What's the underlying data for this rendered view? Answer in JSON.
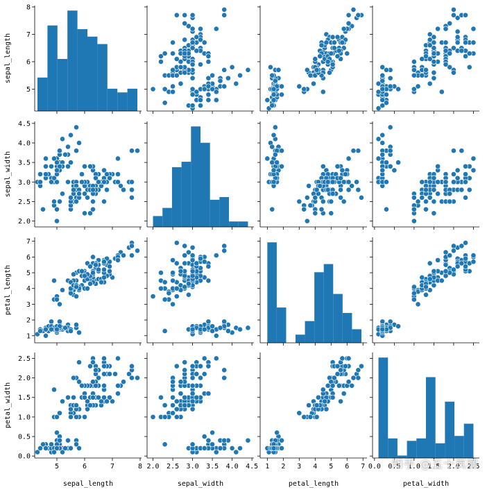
{
  "chart_data": {
    "type": "scatter",
    "variables": [
      "sepal_length",
      "sepal_width",
      "petal_length",
      "petal_width"
    ],
    "ranges": {
      "sepal_length": [
        4.2,
        8.05
      ],
      "sepal_width": [
        1.85,
        4.55
      ],
      "petal_length": [
        0.55,
        7.25
      ],
      "petal_width": [
        -0.05,
        2.65
      ]
    },
    "ticks": {
      "sepal_length": [
        5,
        6,
        7,
        8
      ],
      "sepal_width": [
        2.0,
        2.5,
        3.0,
        3.5,
        4.0,
        4.5
      ],
      "petal_length": [
        1,
        2,
        3,
        4,
        5,
        6,
        7
      ],
      "petal_width": [
        0.0,
        0.5,
        1.0,
        1.5,
        2.0,
        2.5
      ]
    },
    "tick_labels": {
      "sepal_length": [
        "5",
        "6",
        "7",
        "8"
      ],
      "sepal_width": [
        "2.0",
        "2.5",
        "3.0",
        "3.5",
        "4.0",
        "4.5"
      ],
      "petal_length": [
        "1",
        "2",
        "3",
        "4",
        "5",
        "6",
        "7"
      ],
      "petal_width": [
        "0.0",
        "0.5",
        "1.0",
        "1.5",
        "2.0",
        "2.5"
      ]
    },
    "histogram_bins": 10,
    "color": "#1f77b4",
    "grid": false,
    "legend": "none",
    "samples": [
      [
        5.1,
        3.5,
        1.4,
        0.2
      ],
      [
        4.9,
        3.0,
        1.4,
        0.2
      ],
      [
        4.7,
        3.2,
        1.3,
        0.2
      ],
      [
        4.6,
        3.1,
        1.5,
        0.2
      ],
      [
        5.0,
        3.6,
        1.4,
        0.2
      ],
      [
        5.4,
        3.9,
        1.7,
        0.4
      ],
      [
        4.6,
        3.4,
        1.4,
        0.3
      ],
      [
        5.0,
        3.4,
        1.5,
        0.2
      ],
      [
        4.4,
        2.9,
        1.4,
        0.2
      ],
      [
        4.9,
        3.1,
        1.5,
        0.1
      ],
      [
        5.4,
        3.7,
        1.5,
        0.2
      ],
      [
        4.8,
        3.4,
        1.6,
        0.2
      ],
      [
        4.8,
        3.0,
        1.4,
        0.1
      ],
      [
        4.3,
        3.0,
        1.1,
        0.1
      ],
      [
        5.8,
        4.0,
        1.2,
        0.2
      ],
      [
        5.7,
        4.4,
        1.5,
        0.4
      ],
      [
        5.4,
        3.9,
        1.3,
        0.4
      ],
      [
        5.1,
        3.5,
        1.4,
        0.3
      ],
      [
        5.7,
        3.8,
        1.7,
        0.3
      ],
      [
        5.1,
        3.8,
        1.5,
        0.3
      ],
      [
        5.4,
        3.4,
        1.7,
        0.2
      ],
      [
        5.1,
        3.7,
        1.5,
        0.4
      ],
      [
        4.6,
        3.6,
        1.0,
        0.2
      ],
      [
        5.1,
        3.3,
        1.7,
        0.5
      ],
      [
        4.8,
        3.4,
        1.9,
        0.2
      ],
      [
        5.0,
        3.0,
        1.6,
        0.2
      ],
      [
        5.0,
        3.4,
        1.6,
        0.4
      ],
      [
        5.2,
        3.5,
        1.5,
        0.2
      ],
      [
        5.2,
        3.4,
        1.4,
        0.2
      ],
      [
        4.7,
        3.2,
        1.6,
        0.2
      ],
      [
        4.8,
        3.1,
        1.6,
        0.2
      ],
      [
        5.4,
        3.4,
        1.5,
        0.4
      ],
      [
        5.2,
        4.1,
        1.5,
        0.1
      ],
      [
        5.5,
        4.2,
        1.4,
        0.2
      ],
      [
        4.9,
        3.1,
        1.5,
        0.2
      ],
      [
        5.0,
        3.2,
        1.2,
        0.2
      ],
      [
        5.5,
        3.5,
        1.3,
        0.2
      ],
      [
        4.9,
        3.6,
        1.4,
        0.1
      ],
      [
        4.4,
        3.0,
        1.3,
        0.2
      ],
      [
        5.1,
        3.4,
        1.5,
        0.2
      ],
      [
        5.0,
        3.5,
        1.3,
        0.3
      ],
      [
        4.5,
        2.3,
        1.3,
        0.3
      ],
      [
        4.4,
        3.2,
        1.3,
        0.2
      ],
      [
        5.0,
        3.5,
        1.6,
        0.6
      ],
      [
        5.1,
        3.8,
        1.9,
        0.4
      ],
      [
        4.8,
        3.0,
        1.4,
        0.3
      ],
      [
        5.1,
        3.8,
        1.6,
        0.2
      ],
      [
        4.6,
        3.2,
        1.4,
        0.2
      ],
      [
        5.3,
        3.7,
        1.5,
        0.2
      ],
      [
        5.0,
        3.3,
        1.4,
        0.2
      ],
      [
        7.0,
        3.2,
        4.7,
        1.4
      ],
      [
        6.4,
        3.2,
        4.5,
        1.5
      ],
      [
        6.9,
        3.1,
        4.9,
        1.5
      ],
      [
        5.5,
        2.3,
        4.0,
        1.3
      ],
      [
        6.5,
        2.8,
        4.6,
        1.5
      ],
      [
        5.7,
        2.8,
        4.5,
        1.3
      ],
      [
        6.3,
        3.3,
        4.7,
        1.6
      ],
      [
        4.9,
        2.4,
        3.3,
        1.0
      ],
      [
        6.6,
        2.9,
        4.6,
        1.3
      ],
      [
        5.2,
        2.7,
        3.9,
        1.4
      ],
      [
        5.0,
        2.0,
        3.5,
        1.0
      ],
      [
        5.9,
        3.0,
        4.2,
        1.5
      ],
      [
        6.0,
        2.2,
        4.0,
        1.0
      ],
      [
        6.1,
        2.9,
        4.7,
        1.4
      ],
      [
        5.6,
        2.9,
        3.6,
        1.3
      ],
      [
        6.7,
        3.1,
        4.4,
        1.4
      ],
      [
        5.6,
        3.0,
        4.5,
        1.5
      ],
      [
        5.8,
        2.7,
        4.1,
        1.0
      ],
      [
        6.2,
        2.2,
        4.5,
        1.5
      ],
      [
        5.6,
        2.5,
        3.9,
        1.1
      ],
      [
        5.9,
        3.2,
        4.8,
        1.8
      ],
      [
        6.1,
        2.8,
        4.0,
        1.3
      ],
      [
        6.3,
        2.5,
        4.9,
        1.5
      ],
      [
        6.1,
        2.8,
        4.7,
        1.2
      ],
      [
        6.4,
        2.9,
        4.3,
        1.3
      ],
      [
        6.6,
        3.0,
        4.4,
        1.4
      ],
      [
        6.8,
        2.8,
        4.8,
        1.4
      ],
      [
        6.7,
        3.0,
        5.0,
        1.7
      ],
      [
        6.0,
        2.9,
        4.5,
        1.5
      ],
      [
        5.7,
        2.6,
        3.5,
        1.0
      ],
      [
        5.5,
        2.4,
        3.8,
        1.1
      ],
      [
        5.5,
        2.4,
        3.7,
        1.0
      ],
      [
        5.8,
        2.7,
        3.9,
        1.2
      ],
      [
        6.0,
        2.7,
        5.1,
        1.6
      ],
      [
        5.4,
        3.0,
        4.5,
        1.5
      ],
      [
        6.0,
        3.4,
        4.5,
        1.6
      ],
      [
        6.7,
        3.1,
        4.7,
        1.5
      ],
      [
        6.3,
        2.3,
        4.4,
        1.3
      ],
      [
        5.6,
        3.0,
        4.1,
        1.3
      ],
      [
        5.5,
        2.5,
        4.0,
        1.3
      ],
      [
        5.5,
        2.6,
        4.4,
        1.2
      ],
      [
        6.1,
        3.0,
        4.6,
        1.4
      ],
      [
        5.8,
        2.6,
        4.0,
        1.2
      ],
      [
        5.0,
        2.3,
        3.3,
        1.0
      ],
      [
        5.6,
        2.7,
        4.2,
        1.3
      ],
      [
        5.7,
        3.0,
        4.2,
        1.2
      ],
      [
        5.7,
        2.9,
        4.2,
        1.3
      ],
      [
        6.2,
        2.9,
        4.3,
        1.3
      ],
      [
        5.1,
        2.5,
        3.0,
        1.1
      ],
      [
        5.7,
        2.8,
        4.1,
        1.3
      ],
      [
        6.3,
        3.3,
        6.0,
        2.5
      ],
      [
        5.8,
        2.7,
        5.1,
        1.9
      ],
      [
        7.1,
        3.0,
        5.9,
        2.1
      ],
      [
        6.3,
        2.9,
        5.6,
        1.8
      ],
      [
        6.5,
        3.0,
        5.8,
        2.2
      ],
      [
        7.6,
        3.0,
        6.6,
        2.1
      ],
      [
        4.9,
        2.5,
        4.5,
        1.7
      ],
      [
        7.3,
        2.9,
        6.3,
        1.8
      ],
      [
        6.7,
        2.5,
        5.8,
        1.8
      ],
      [
        7.2,
        3.6,
        6.1,
        2.5
      ],
      [
        6.5,
        3.2,
        5.1,
        2.0
      ],
      [
        6.4,
        2.7,
        5.3,
        1.9
      ],
      [
        6.8,
        3.0,
        5.5,
        2.1
      ],
      [
        5.7,
        2.5,
        5.0,
        2.0
      ],
      [
        5.8,
        2.8,
        5.1,
        2.4
      ],
      [
        6.4,
        3.2,
        5.3,
        2.3
      ],
      [
        6.5,
        3.0,
        5.5,
        1.8
      ],
      [
        7.7,
        3.8,
        6.7,
        2.2
      ],
      [
        7.7,
        2.6,
        6.9,
        2.3
      ],
      [
        6.0,
        2.2,
        5.0,
        1.5
      ],
      [
        6.9,
        3.2,
        5.7,
        2.3
      ],
      [
        5.6,
        2.8,
        4.9,
        2.0
      ],
      [
        7.7,
        2.8,
        6.7,
        2.0
      ],
      [
        6.3,
        2.7,
        4.9,
        1.8
      ],
      [
        6.7,
        3.3,
        5.7,
        2.1
      ],
      [
        7.2,
        3.2,
        6.0,
        1.8
      ],
      [
        6.2,
        2.8,
        4.8,
        1.8
      ],
      [
        6.1,
        3.0,
        4.9,
        1.8
      ],
      [
        6.4,
        2.8,
        5.6,
        2.1
      ],
      [
        7.2,
        3.0,
        5.8,
        1.6
      ],
      [
        7.4,
        2.8,
        6.1,
        1.9
      ],
      [
        7.9,
        3.8,
        6.4,
        2.0
      ],
      [
        6.4,
        2.8,
        5.6,
        2.2
      ],
      [
        6.3,
        2.8,
        5.1,
        1.5
      ],
      [
        6.1,
        2.6,
        5.6,
        1.4
      ],
      [
        7.7,
        3.0,
        6.1,
        2.3
      ],
      [
        6.3,
        3.4,
        5.6,
        2.4
      ],
      [
        6.4,
        3.1,
        5.5,
        1.8
      ],
      [
        6.0,
        3.0,
        4.8,
        1.8
      ],
      [
        6.9,
        3.1,
        5.4,
        2.1
      ],
      [
        6.7,
        3.1,
        5.6,
        2.4
      ],
      [
        6.9,
        3.1,
        5.1,
        2.3
      ],
      [
        5.8,
        2.7,
        5.1,
        1.9
      ],
      [
        6.8,
        3.2,
        5.9,
        2.3
      ],
      [
        6.7,
        3.3,
        5.7,
        2.5
      ],
      [
        6.7,
        3.0,
        5.2,
        2.3
      ],
      [
        6.3,
        2.5,
        5.0,
        1.9
      ],
      [
        6.5,
        3.0,
        5.2,
        2.0
      ],
      [
        6.2,
        3.4,
        5.4,
        2.3
      ],
      [
        5.9,
        3.0,
        5.1,
        1.8
      ]
    ]
  },
  "watermark": "知乎 @五十岚啸"
}
